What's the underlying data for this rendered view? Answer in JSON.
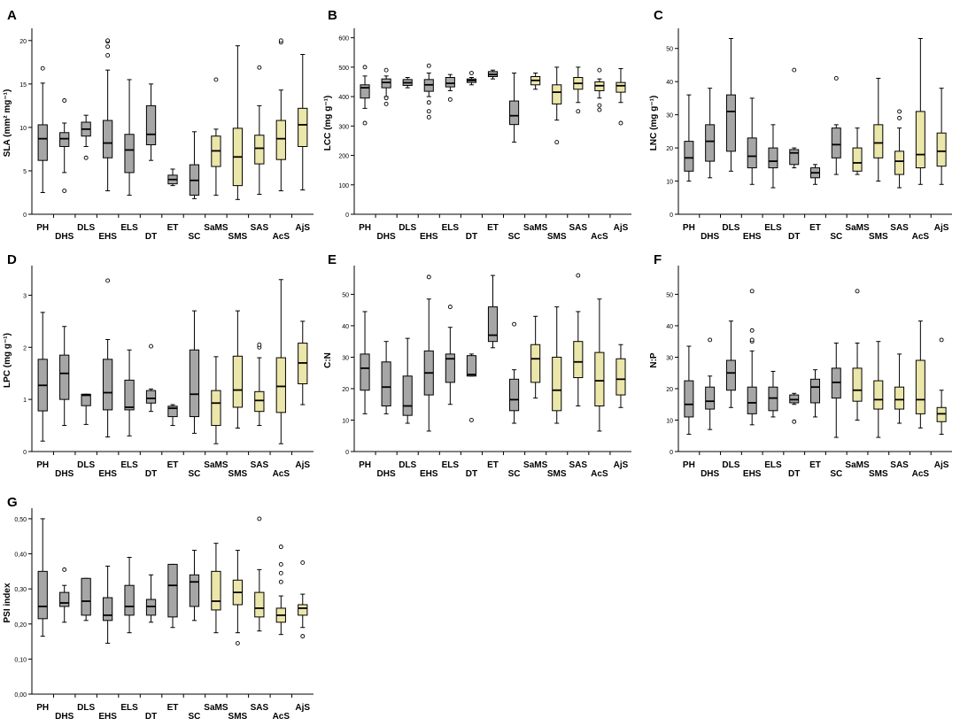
{
  "figure": {
    "categories": [
      "PH",
      "DHS",
      "DLS",
      "EHS",
      "ELS",
      "DT",
      "ET",
      "SC",
      "SaMS",
      "SMS",
      "SAS",
      "AcS",
      "AjS"
    ],
    "group_colors": {
      "gray": "#a6a6a6",
      "yellow": "#ebe6a9"
    },
    "category_groups": [
      "gray",
      "gray",
      "gray",
      "gray",
      "gray",
      "gray",
      "gray",
      "gray",
      "yellow",
      "yellow",
      "yellow",
      "yellow",
      "yellow"
    ]
  },
  "chart_data": [
    {
      "type": "box",
      "panel_label": "A",
      "ylabel": "SLA (mm² mg⁻¹)",
      "ylim": [
        0,
        21
      ],
      "yticks": [
        0,
        5,
        10,
        15,
        20
      ],
      "ytick_labels": [
        "0",
        "5",
        "10",
        "15",
        "20"
      ],
      "boxes": [
        {
          "min": 2.5,
          "q1": 6.2,
          "median": 8.7,
          "q3": 10.3,
          "max": 15.1,
          "outliers": [
            16.8
          ]
        },
        {
          "min": 4.8,
          "q1": 7.8,
          "median": 8.7,
          "q3": 9.4,
          "max": 10.5,
          "outliers": [
            2.7,
            13.1
          ]
        },
        {
          "min": 7.8,
          "q1": 9.0,
          "median": 9.8,
          "q3": 10.6,
          "max": 11.4,
          "outliers": [
            6.5
          ]
        },
        {
          "min": 2.7,
          "q1": 6.5,
          "median": 8.2,
          "q3": 10.8,
          "max": 16.6,
          "outliers": [
            18.3,
            19.3,
            19.9,
            20.0
          ]
        },
        {
          "min": 2.2,
          "q1": 4.8,
          "median": 7.4,
          "q3": 9.2,
          "max": 15.5,
          "outliers": []
        },
        {
          "min": 6.2,
          "q1": 8.0,
          "median": 9.2,
          "q3": 12.5,
          "max": 15.0,
          "outliers": []
        },
        {
          "min": 3.3,
          "q1": 3.5,
          "median": 4.0,
          "q3": 4.5,
          "max": 5.2,
          "outliers": []
        },
        {
          "min": 1.8,
          "q1": 2.2,
          "median": 3.9,
          "q3": 5.7,
          "max": 9.5,
          "outliers": []
        },
        {
          "min": 2.2,
          "q1": 5.5,
          "median": 7.3,
          "q3": 9.0,
          "max": 9.8,
          "outliers": [
            15.5
          ]
        },
        {
          "min": 1.7,
          "q1": 3.3,
          "median": 6.6,
          "q3": 9.9,
          "max": 19.4,
          "outliers": []
        },
        {
          "min": 2.3,
          "q1": 5.8,
          "median": 7.6,
          "q3": 9.1,
          "max": 12.5,
          "outliers": [
            16.9
          ]
        },
        {
          "min": 2.7,
          "q1": 6.3,
          "median": 8.7,
          "q3": 10.8,
          "max": 14.3,
          "outliers": [
            19.8,
            20.0
          ]
        },
        {
          "min": 2.8,
          "q1": 7.8,
          "median": 10.3,
          "q3": 12.2,
          "max": 18.4,
          "outliers": []
        }
      ]
    },
    {
      "type": "box",
      "panel_label": "B",
      "ylabel": "LCC (mg g⁻¹)",
      "ylim": [
        0,
        620
      ],
      "yticks": [
        0,
        100,
        200,
        300,
        400,
        500,
        600
      ],
      "ytick_labels": [
        "0",
        "100",
        "200",
        "300",
        "400",
        "500",
        "600"
      ],
      "boxes": [
        {
          "min": 360,
          "q1": 395,
          "median": 430,
          "q3": 440,
          "max": 470,
          "outliers": [
            310,
            500
          ]
        },
        {
          "min": 400,
          "q1": 430,
          "median": 448,
          "q3": 460,
          "max": 470,
          "outliers": [
            375,
            395,
            490
          ]
        },
        {
          "min": 430,
          "q1": 438,
          "median": 447,
          "q3": 458,
          "max": 465,
          "outliers": []
        },
        {
          "min": 400,
          "q1": 418,
          "median": 440,
          "q3": 458,
          "max": 480,
          "outliers": [
            330,
            350,
            380,
            505
          ]
        },
        {
          "min": 420,
          "q1": 433,
          "median": 445,
          "q3": 465,
          "max": 475,
          "outliers": [
            390
          ]
        },
        {
          "min": 440,
          "q1": 448,
          "median": 455,
          "q3": 460,
          "max": 465,
          "outliers": [
            480
          ]
        },
        {
          "min": 460,
          "q1": 468,
          "median": 475,
          "q3": 485,
          "max": 490,
          "outliers": []
        },
        {
          "min": 245,
          "q1": 305,
          "median": 335,
          "q3": 385,
          "max": 480,
          "outliers": []
        },
        {
          "min": 425,
          "q1": 440,
          "median": 455,
          "q3": 468,
          "max": 480,
          "outliers": []
        },
        {
          "min": 320,
          "q1": 375,
          "median": 415,
          "q3": 440,
          "max": 500,
          "outliers": [
            245
          ]
        },
        {
          "min": 380,
          "q1": 425,
          "median": 445,
          "q3": 465,
          "max": 500,
          "outliers": [
            350
          ]
        },
        {
          "min": 395,
          "q1": 420,
          "median": 437,
          "q3": 450,
          "max": 460,
          "outliers": [
            355,
            370,
            490
          ]
        },
        {
          "min": 380,
          "q1": 415,
          "median": 437,
          "q3": 448,
          "max": 495,
          "outliers": [
            310
          ]
        }
      ]
    },
    {
      "type": "box",
      "panel_label": "C",
      "ylabel": "LNC (mg g⁻¹)",
      "ylim": [
        0,
        55
      ],
      "yticks": [
        0,
        10,
        20,
        30,
        40,
        50
      ],
      "ytick_labels": [
        "0",
        "10",
        "20",
        "30",
        "40",
        "50"
      ],
      "boxes": [
        {
          "min": 10,
          "q1": 13,
          "median": 17,
          "q3": 22,
          "max": 36,
          "outliers": []
        },
        {
          "min": 11,
          "q1": 16,
          "median": 22,
          "q3": 27,
          "max": 38,
          "outliers": []
        },
        {
          "min": 13,
          "q1": 19,
          "median": 31,
          "q3": 36,
          "max": 53,
          "outliers": []
        },
        {
          "min": 9,
          "q1": 14,
          "median": 17.5,
          "q3": 23,
          "max": 35,
          "outliers": []
        },
        {
          "min": 8,
          "q1": 14,
          "median": 16,
          "q3": 20,
          "max": 27,
          "outliers": []
        },
        {
          "min": 14,
          "q1": 15,
          "median": 18.5,
          "q3": 19.5,
          "max": 20,
          "outliers": [
            43.5
          ]
        },
        {
          "min": 9,
          "q1": 11,
          "median": 12.5,
          "q3": 14,
          "max": 15,
          "outliers": []
        },
        {
          "min": 12,
          "q1": 17,
          "median": 21,
          "q3": 26,
          "max": 27,
          "outliers": [
            41
          ]
        },
        {
          "min": 12,
          "q1": 13,
          "median": 15.5,
          "q3": 20,
          "max": 26,
          "outliers": []
        },
        {
          "min": 10,
          "q1": 17,
          "median": 21.5,
          "q3": 27,
          "max": 41,
          "outliers": []
        },
        {
          "min": 8,
          "q1": 12,
          "median": 16,
          "q3": 19,
          "max": 26,
          "outliers": [
            29,
            31
          ]
        },
        {
          "min": 9,
          "q1": 14,
          "median": 18,
          "q3": 31,
          "max": 53,
          "outliers": []
        },
        {
          "min": 9,
          "q1": 14.5,
          "median": 19,
          "q3": 24.5,
          "max": 38,
          "outliers": []
        }
      ]
    },
    {
      "type": "box",
      "panel_label": "D",
      "ylabel": "LPC (mg g⁻¹)",
      "ylim": [
        0,
        3.5
      ],
      "yticks": [
        0,
        1,
        2,
        3
      ],
      "ytick_labels": [
        "0",
        "1",
        "2",
        "3"
      ],
      "boxes": [
        {
          "min": 0.2,
          "q1": 0.78,
          "median": 1.27,
          "q3": 1.77,
          "max": 2.67,
          "outliers": []
        },
        {
          "min": 0.5,
          "q1": 1.0,
          "median": 1.5,
          "q3": 1.85,
          "max": 2.4,
          "outliers": []
        },
        {
          "min": 0.52,
          "q1": 0.88,
          "median": 1.08,
          "q3": 1.1,
          "max": 1.1,
          "outliers": []
        },
        {
          "min": 0.28,
          "q1": 0.8,
          "median": 1.13,
          "q3": 1.77,
          "max": 2.15,
          "outliers": [
            3.28
          ]
        },
        {
          "min": 0.3,
          "q1": 0.8,
          "median": 0.85,
          "q3": 1.37,
          "max": 1.95,
          "outliers": []
        },
        {
          "min": 0.77,
          "q1": 0.93,
          "median": 1.02,
          "q3": 1.17,
          "max": 1.2,
          "outliers": [
            2.02
          ]
        },
        {
          "min": 0.5,
          "q1": 0.67,
          "median": 0.83,
          "q3": 0.87,
          "max": 0.9,
          "outliers": []
        },
        {
          "min": 0.35,
          "q1": 0.67,
          "median": 1.1,
          "q3": 1.95,
          "max": 2.7,
          "outliers": []
        },
        {
          "min": 0.15,
          "q1": 0.5,
          "median": 0.93,
          "q3": 1.17,
          "max": 1.82,
          "outliers": []
        },
        {
          "min": 0.45,
          "q1": 0.85,
          "median": 1.18,
          "q3": 1.83,
          "max": 2.7,
          "outliers": []
        },
        {
          "min": 0.5,
          "q1": 0.77,
          "median": 0.98,
          "q3": 1.15,
          "max": 1.8,
          "outliers": [
            2.0,
            2.05
          ]
        },
        {
          "min": 0.15,
          "q1": 0.75,
          "median": 1.25,
          "q3": 1.8,
          "max": 3.3,
          "outliers": []
        },
        {
          "min": 0.9,
          "q1": 1.3,
          "median": 1.7,
          "q3": 2.08,
          "max": 2.5,
          "outliers": []
        }
      ]
    },
    {
      "type": "box",
      "panel_label": "E",
      "ylabel": "C:N",
      "ylim": [
        0,
        58
      ],
      "yticks": [
        0,
        10,
        20,
        30,
        40,
        50
      ],
      "ytick_labels": [
        "0",
        "10",
        "20",
        "30",
        "40",
        "50"
      ],
      "boxes": [
        {
          "min": 12,
          "q1": 19.5,
          "median": 26.5,
          "q3": 31,
          "max": 44.5,
          "outliers": []
        },
        {
          "min": 12,
          "q1": 14.5,
          "median": 20.5,
          "q3": 28.5,
          "max": 35,
          "outliers": []
        },
        {
          "min": 9,
          "q1": 11.5,
          "median": 14.5,
          "q3": 24,
          "max": 36,
          "outliers": []
        },
        {
          "min": 6.5,
          "q1": 18,
          "median": 25,
          "q3": 32,
          "max": 48.5,
          "outliers": [
            55.5
          ]
        },
        {
          "min": 15,
          "q1": 22,
          "median": 29.5,
          "q3": 31,
          "max": 39.5,
          "outliers": [
            46
          ]
        },
        {
          "min": 24,
          "q1": 24,
          "median": 24.5,
          "q3": 30.5,
          "max": 31,
          "outliers": [
            10
          ]
        },
        {
          "min": 33,
          "q1": 35,
          "median": 37,
          "q3": 46,
          "max": 56,
          "outliers": []
        },
        {
          "min": 9,
          "q1": 13,
          "median": 16.5,
          "q3": 23,
          "max": 26,
          "outliers": [
            40.5
          ]
        },
        {
          "min": 17,
          "q1": 22,
          "median": 29.5,
          "q3": 34,
          "max": 43,
          "outliers": []
        },
        {
          "min": 9,
          "q1": 13,
          "median": 19.5,
          "q3": 30,
          "max": 46,
          "outliers": []
        },
        {
          "min": 14.5,
          "q1": 23.5,
          "median": 28.5,
          "q3": 35,
          "max": 44.5,
          "outliers": [
            56
          ]
        },
        {
          "min": 6.5,
          "q1": 14.5,
          "median": 22.5,
          "q3": 31.5,
          "max": 48.5,
          "outliers": []
        },
        {
          "min": 14,
          "q1": 18,
          "median": 23,
          "q3": 29.5,
          "max": 34,
          "outliers": []
        }
      ]
    },
    {
      "type": "box",
      "panel_label": "F",
      "ylabel": "N:P",
      "ylim": [
        0,
        58
      ],
      "yticks": [
        0,
        10,
        20,
        30,
        40,
        50
      ],
      "ytick_labels": [
        "0",
        "10",
        "20",
        "30",
        "40",
        "50"
      ],
      "boxes": [
        {
          "min": 5.5,
          "q1": 11,
          "median": 15,
          "q3": 22.5,
          "max": 33.5,
          "outliers": []
        },
        {
          "min": 7,
          "q1": 13.5,
          "median": 16,
          "q3": 20.5,
          "max": 24,
          "outliers": [
            35.5
          ]
        },
        {
          "min": 14,
          "q1": 19.5,
          "median": 25,
          "q3": 29,
          "max": 41.5,
          "outliers": []
        },
        {
          "min": 8.5,
          "q1": 12,
          "median": 15.5,
          "q3": 20.5,
          "max": 32,
          "outliers": [
            35,
            35.5,
            38.5,
            51
          ]
        },
        {
          "min": 11,
          "q1": 13,
          "median": 17,
          "q3": 20.5,
          "max": 25.5,
          "outliers": []
        },
        {
          "min": 15,
          "q1": 15.5,
          "median": 16.5,
          "q3": 18,
          "max": 18.5,
          "outliers": [
            9.5
          ]
        },
        {
          "min": 11,
          "q1": 15.5,
          "median": 20.5,
          "q3": 23,
          "max": 26,
          "outliers": []
        },
        {
          "min": 4.5,
          "q1": 17,
          "median": 22,
          "q3": 26.5,
          "max": 34.5,
          "outliers": []
        },
        {
          "min": 10,
          "q1": 16,
          "median": 19.5,
          "q3": 26.5,
          "max": 34.5,
          "outliers": [
            51
          ]
        },
        {
          "min": 4.5,
          "q1": 13.5,
          "median": 16.5,
          "q3": 22.5,
          "max": 35,
          "outliers": []
        },
        {
          "min": 9,
          "q1": 13.5,
          "median": 16.5,
          "q3": 20.5,
          "max": 31,
          "outliers": []
        },
        {
          "min": 7.5,
          "q1": 12,
          "median": 16.5,
          "q3": 29,
          "max": 41.5,
          "outliers": []
        },
        {
          "min": 5.5,
          "q1": 9.5,
          "median": 12,
          "q3": 14,
          "max": 19.5,
          "outliers": [
            35.5
          ]
        }
      ]
    },
    {
      "type": "box",
      "panel_label": "G",
      "ylabel": "PSI index",
      "ylim": [
        0,
        0.52
      ],
      "yticks": [
        0,
        0.1,
        0.2,
        0.3,
        0.4,
        0.5
      ],
      "ytick_labels": [
        "0,00",
        "0,10",
        "0,20",
        "0,30",
        "0,40",
        "0,50"
      ],
      "boxes": [
        {
          "min": 0.165,
          "q1": 0.215,
          "median": 0.25,
          "q3": 0.35,
          "max": 0.5,
          "outliers": []
        },
        {
          "min": 0.205,
          "q1": 0.25,
          "median": 0.26,
          "q3": 0.29,
          "max": 0.31,
          "outliers": [
            0.355
          ]
        },
        {
          "min": 0.21,
          "q1": 0.225,
          "median": 0.265,
          "q3": 0.33,
          "max": 0.33,
          "outliers": []
        },
        {
          "min": 0.145,
          "q1": 0.21,
          "median": 0.225,
          "q3": 0.275,
          "max": 0.365,
          "outliers": []
        },
        {
          "min": 0.175,
          "q1": 0.225,
          "median": 0.25,
          "q3": 0.31,
          "max": 0.39,
          "outliers": []
        },
        {
          "min": 0.205,
          "q1": 0.225,
          "median": 0.25,
          "q3": 0.27,
          "max": 0.34,
          "outliers": []
        },
        {
          "min": 0.19,
          "q1": 0.22,
          "median": 0.31,
          "q3": 0.37,
          "max": 0.37,
          "outliers": []
        },
        {
          "min": 0.21,
          "q1": 0.25,
          "median": 0.32,
          "q3": 0.34,
          "max": 0.41,
          "outliers": []
        },
        {
          "min": 0.175,
          "q1": 0.24,
          "median": 0.265,
          "q3": 0.35,
          "max": 0.43,
          "outliers": []
        },
        {
          "min": 0.175,
          "q1": 0.255,
          "median": 0.29,
          "q3": 0.325,
          "max": 0.41,
          "outliers": [
            0.145
          ]
        },
        {
          "min": 0.18,
          "q1": 0.22,
          "median": 0.245,
          "q3": 0.29,
          "max": 0.355,
          "outliers": [
            0.5
          ]
        },
        {
          "min": 0.17,
          "q1": 0.205,
          "median": 0.225,
          "q3": 0.245,
          "max": 0.28,
          "outliers": [
            0.32,
            0.345,
            0.37,
            0.42
          ]
        },
        {
          "min": 0.19,
          "q1": 0.225,
          "median": 0.245,
          "q3": 0.255,
          "max": 0.285,
          "outliers": [
            0.165,
            0.375
          ]
        }
      ]
    }
  ]
}
